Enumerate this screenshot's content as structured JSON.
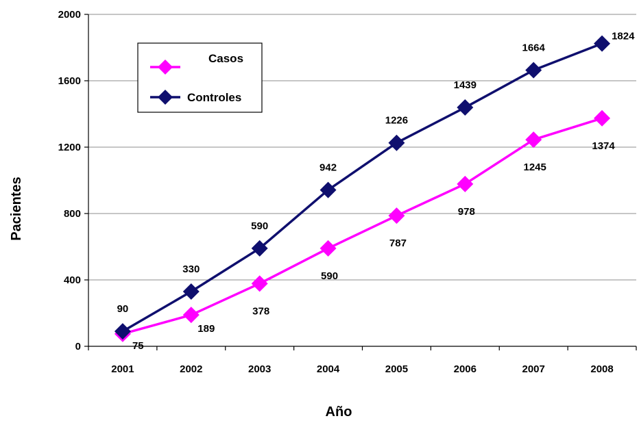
{
  "chart_data": {
    "type": "line",
    "title": "",
    "xlabel": "Año",
    "ylabel": "Pacientes",
    "categories": [
      "2001",
      "2002",
      "2003",
      "2004",
      "2005",
      "2006",
      "2007",
      "2008"
    ],
    "ylim": [
      0,
      2000
    ],
    "yticks": [
      "0",
      "400",
      "800",
      "1200",
      "1600",
      "2000"
    ],
    "grid": true,
    "legend_position": "top-left",
    "series": [
      {
        "name": "Casos",
        "color": "#ff00ff",
        "marker": "diamond",
        "values": [
          75,
          189,
          378,
          590,
          787,
          978,
          1245,
          1374
        ],
        "labels": [
          "75",
          "189",
          "378",
          "590",
          "787",
          "978",
          "1245",
          "1374"
        ]
      },
      {
        "name": "Controles",
        "color": "#0f0f6e",
        "marker": "diamond",
        "values": [
          90,
          330,
          590,
          942,
          1226,
          1439,
          1664,
          1824
        ],
        "labels": [
          "90",
          "330",
          "590",
          "942",
          "1226",
          "1439",
          "1664",
          "1824"
        ]
      }
    ]
  }
}
